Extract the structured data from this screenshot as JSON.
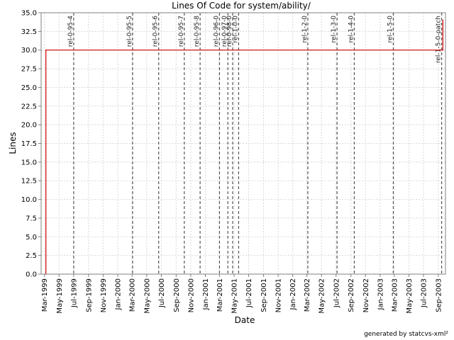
{
  "chart_data": {
    "type": "line",
    "title": "Lines Of Code for system/ability/",
    "xlabel": "Date",
    "ylabel": "Lines",
    "xlim": [
      "1999-02-15",
      "2003-10-01"
    ],
    "ylim": [
      0,
      35
    ],
    "grid": true,
    "y_ticks": [
      "0.0",
      "2.5",
      "5.0",
      "7.5",
      "10.0",
      "12.5",
      "15.0",
      "17.5",
      "20.0",
      "22.5",
      "25.0",
      "27.5",
      "30.0",
      "32.5",
      "35.0"
    ],
    "x_ticks": [
      {
        "label": "Mar-1999",
        "date": "1999-03-01"
      },
      {
        "label": "May-1999",
        "date": "1999-05-01"
      },
      {
        "label": "Jul-1999",
        "date": "1999-07-01"
      },
      {
        "label": "Sep-1999",
        "date": "1999-09-01"
      },
      {
        "label": "Nov-1999",
        "date": "1999-11-01"
      },
      {
        "label": "Jan-2000",
        "date": "2000-01-01"
      },
      {
        "label": "Mar-2000",
        "date": "2000-03-01"
      },
      {
        "label": "May-2000",
        "date": "2000-05-01"
      },
      {
        "label": "Jul-2000",
        "date": "2000-07-01"
      },
      {
        "label": "Sep-2000",
        "date": "2000-09-01"
      },
      {
        "label": "Nov-2000",
        "date": "2000-11-01"
      },
      {
        "label": "Jan-2001",
        "date": "2001-01-01"
      },
      {
        "label": "Mar-2001",
        "date": "2001-03-01"
      },
      {
        "label": "May-2001",
        "date": "2001-05-01"
      },
      {
        "label": "Jul-2001",
        "date": "2001-07-01"
      },
      {
        "label": "Sep-2001",
        "date": "2001-09-01"
      },
      {
        "label": "Nov-2001",
        "date": "2001-11-01"
      },
      {
        "label": "Jan-2002",
        "date": "2002-01-01"
      },
      {
        "label": "Mar-2002",
        "date": "2002-03-01"
      },
      {
        "label": "May-2002",
        "date": "2002-05-01"
      },
      {
        "label": "Jul-2002",
        "date": "2002-07-01"
      },
      {
        "label": "Sep-2002",
        "date": "2002-09-01"
      },
      {
        "label": "Nov-2002",
        "date": "2002-11-01"
      },
      {
        "label": "Jan-2003",
        "date": "2003-01-01"
      },
      {
        "label": "Mar-2003",
        "date": "2003-03-01"
      },
      {
        "label": "May-2003",
        "date": "2003-05-01"
      },
      {
        "label": "Jul-2003",
        "date": "2003-07-01"
      },
      {
        "label": "Sep-2003",
        "date": "2003-09-01"
      }
    ],
    "series": [
      {
        "color": "#cc0000",
        "points": [
          {
            "x": "1999-03-07",
            "y": 0
          },
          {
            "x": "1999-03-07",
            "y": 30
          },
          {
            "x": "2003-09-20",
            "y": 30
          },
          {
            "x": "2003-09-20",
            "y": 34
          }
        ]
      }
    ],
    "releases": [
      {
        "label": "rel-0-95-4",
        "date": "1999-07-01"
      },
      {
        "label": "rel-0-95-5",
        "date": "2000-03-03"
      },
      {
        "label": "rel-0-95-6",
        "date": "2000-06-20"
      },
      {
        "label": "rel-0-95-7",
        "date": "2000-10-05"
      },
      {
        "label": "rel-0-95-8",
        "date": "2000-12-10"
      },
      {
        "label": "rel-0-96-0",
        "date": "2001-03-01"
      },
      {
        "label": "rel-0-97-0",
        "date": "2001-04-05"
      },
      {
        "label": "rel-0-98-0",
        "date": "2001-04-25"
      },
      {
        "label": "rel-1-0-0",
        "date": "2001-05-20"
      },
      {
        "label": "rel-1-2-0",
        "date": "2002-03-05"
      },
      {
        "label": "rel-1-3-0",
        "date": "2002-07-05"
      },
      {
        "label": "rel-1-4-0",
        "date": "2002-09-15"
      },
      {
        "label": "rel-1-5-0",
        "date": "2003-02-25"
      },
      {
        "label": "rel-1-5-0-patch",
        "date": "2003-09-15"
      }
    ],
    "colors": {
      "line": "#cc0000",
      "grid": "#d8d8d8",
      "release": "#555555"
    }
  },
  "footer": "generated by statcvs-xml²"
}
